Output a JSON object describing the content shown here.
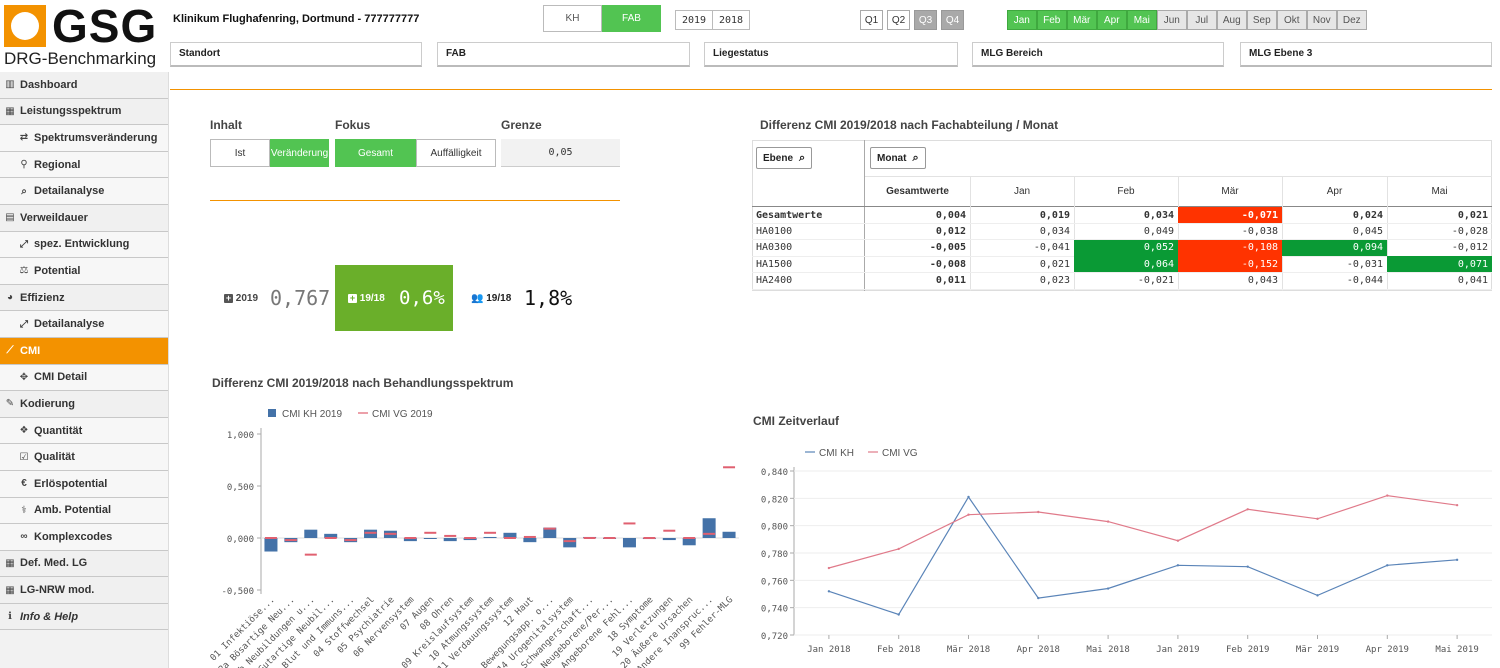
{
  "logo": {
    "brand": "GSG",
    "subtitle": "DRG-Benchmarking"
  },
  "header": {
    "clinic": "Klinikum Flughafenring, Dortmund - 777777777",
    "scope": [
      {
        "label": "KH",
        "active": false
      },
      {
        "label": "FAB",
        "active": true
      }
    ],
    "years": [
      "2019",
      "2018"
    ],
    "quarters": [
      {
        "label": "Q1",
        "available": true
      },
      {
        "label": "Q2",
        "available": true
      },
      {
        "label": "Q3",
        "available": false
      },
      {
        "label": "Q4",
        "available": false
      }
    ],
    "months": [
      {
        "label": "Jan",
        "active": true
      },
      {
        "label": "Feb",
        "active": true
      },
      {
        "label": "Mär",
        "active": true
      },
      {
        "label": "Apr",
        "active": true
      },
      {
        "label": "Mai",
        "active": true
      },
      {
        "label": "Jun",
        "active": false
      },
      {
        "label": "Jul",
        "active": false
      },
      {
        "label": "Aug",
        "active": false
      },
      {
        "label": "Sep",
        "active": false
      },
      {
        "label": "Okt",
        "active": false
      },
      {
        "label": "Nov",
        "active": false
      },
      {
        "label": "Dez",
        "active": false
      }
    ],
    "filters": [
      "Standort",
      "FAB",
      "Liegestatus",
      "MLG Bereich",
      "MLG Ebene 3"
    ]
  },
  "sidebar": {
    "items": [
      {
        "label": "Dashboard",
        "icon": "bar-chart-icon",
        "glyph": "▥",
        "level": 1
      },
      {
        "label": "Leistungsspektrum",
        "icon": "table-icon",
        "glyph": "▦",
        "level": 1
      },
      {
        "label": "Spektrumsveränderung",
        "icon": "exchange-icon",
        "glyph": "⇄",
        "level": 2
      },
      {
        "label": "Regional",
        "icon": "map-marker-icon",
        "glyph": "⚲",
        "level": 2
      },
      {
        "label": "Detailanalyse",
        "icon": "search-icon",
        "glyph": "⌕",
        "level": 2
      },
      {
        "label": "Verweildauer",
        "icon": "calendar-icon",
        "glyph": "▤",
        "level": 1
      },
      {
        "label": "spez. Entwicklung",
        "icon": "expand-icon",
        "glyph": "⤢",
        "level": 2
      },
      {
        "label": "Potential",
        "icon": "balance-icon",
        "glyph": "⚖",
        "level": 2
      },
      {
        "label": "Effizienz",
        "icon": "pie-chart-icon",
        "glyph": "◕",
        "level": 1
      },
      {
        "label": "Detailanalyse",
        "icon": "expand-icon",
        "glyph": "⤢",
        "level": 2
      },
      {
        "label": "CMI",
        "icon": "line-chart-icon",
        "glyph": "⟋",
        "level": 1,
        "active": true
      },
      {
        "label": "CMI Detail",
        "icon": "move-icon",
        "glyph": "✥",
        "level": 2
      },
      {
        "label": "Kodierung",
        "icon": "pencil-icon",
        "glyph": "✎",
        "level": 1
      },
      {
        "label": "Quantität",
        "icon": "cubes-icon",
        "glyph": "❖",
        "level": 2
      },
      {
        "label": "Qualität",
        "icon": "check-square-icon",
        "glyph": "☑",
        "level": 2
      },
      {
        "label": "Erlöspotential",
        "icon": "euro-icon",
        "glyph": "€",
        "level": 2
      },
      {
        "label": "Amb. Potential",
        "icon": "user-md-icon",
        "glyph": "⚕",
        "level": 2
      },
      {
        "label": "Komplexcodes",
        "icon": "link-icon",
        "glyph": "∞",
        "level": 2
      },
      {
        "label": "Def. Med. LG",
        "icon": "table-icon",
        "glyph": "▦",
        "level": 1
      },
      {
        "label": "LG-NRW mod.",
        "icon": "table-icon",
        "glyph": "▦",
        "level": 1
      },
      {
        "label": "Info & Help",
        "icon": "info-icon",
        "glyph": "ℹ",
        "level": 1,
        "italic": true
      }
    ]
  },
  "controls": {
    "inhalt": {
      "label": "Inhalt",
      "options": [
        {
          "label": "Ist",
          "active": false
        },
        {
          "label": "Veränderung",
          "active": true
        }
      ]
    },
    "fokus": {
      "label": "Fokus",
      "options": [
        {
          "label": "Gesamt",
          "active": true
        },
        {
          "label": "Auffälligkeit",
          "active": false
        }
      ]
    },
    "grenze": {
      "label": "Grenze",
      "value": "0,05"
    }
  },
  "kpis": {
    "cmi_2019": {
      "label": "2019",
      "value": "0,767",
      "icon": "plus-square-icon"
    },
    "change": {
      "label": "19/18",
      "value": "0,6%",
      "icon": "plus-square-icon"
    },
    "cases": {
      "label": "19/18",
      "value": "1,8%",
      "icon": "users-icon"
    }
  },
  "matrix": {
    "title": "Differenz CMI 2019/2018 nach Fachabteilung / Monat",
    "dim1": "Ebene",
    "dim2": "Monat",
    "columns": [
      "Gesamtwerte",
      "Jan",
      "Feb",
      "Mär",
      "Apr",
      "Mai"
    ],
    "rows": [
      {
        "label": "Gesamtwerte",
        "values": [
          "0,004",
          "0,019",
          "0,034",
          "-0,071",
          "0,024",
          "0,021"
        ],
        "colors": [
          "",
          "",
          "",
          "#ff3300",
          "",
          ""
        ],
        "bold": true
      },
      {
        "label": "HA0100",
        "values": [
          "0,012",
          "0,034",
          "0,049",
          "-0,038",
          "0,045",
          "-0,028"
        ],
        "colors": [
          "",
          "",
          "",
          "",
          "",
          ""
        ],
        "bold": false
      },
      {
        "label": "HA0300",
        "values": [
          "-0,005",
          "-0,041",
          "0,052",
          "-0,108",
          "0,094",
          "-0,012"
        ],
        "colors": [
          "",
          "",
          "#0a9a35",
          "#ff3300",
          "#0a9a35",
          ""
        ],
        "bold": false
      },
      {
        "label": "HA1500",
        "values": [
          "-0,008",
          "0,021",
          "0,064",
          "-0,152",
          "-0,031",
          "0,071"
        ],
        "colors": [
          "",
          "",
          "#0a9a35",
          "#ff3300",
          "",
          "#0a9a35"
        ],
        "bold": false
      },
      {
        "label": "HA2400",
        "values": [
          "0,011",
          "0,023",
          "-0,021",
          "0,043",
          "-0,044",
          "0,041"
        ],
        "colors": [
          "",
          "",
          "",
          "",
          "",
          ""
        ],
        "bold": false
      }
    ]
  },
  "chart_data": [
    {
      "type": "bar",
      "title": "Differenz CMI 2019/2018 nach Behandlungsspektrum",
      "ylim": [
        -0.5,
        1.0
      ],
      "yticks": [
        "1,000",
        "0,500",
        "0,000",
        "-0,500"
      ],
      "legend": "top-left",
      "series_names": [
        "CMI KH 2019",
        "CMI VG 2019"
      ],
      "colors": {
        "bar": "#4472a8",
        "marker": "#e06070"
      },
      "categories": [
        "01 Infektiöse...",
        "02a Bösartige Neu...",
        "02b Neubildungen u...",
        "02c Gutartige Neubil...",
        "03 Blut und Immuns...",
        "04 Stoffwechsel",
        "05 Psychiatrie",
        "06 Nervensystem",
        "07 Augen",
        "08 Ohren",
        "09 Kreislaufsystem",
        "10 Atmungssystem",
        "11 Verdauungssystem",
        "12 Haut",
        "13 Bewegungsapp. o...",
        "14 Urogenitalsystem",
        "15 Schwangerschaft...",
        "16 Neugeborene/Per...",
        "17 Angeborene Fehl...",
        "18 Symptome",
        "19 Verletzungen",
        "20 Äußere Ursachen",
        "21 Andere Inanspruc...",
        "99 Fehler-MLG"
      ],
      "bars": [
        -0.13,
        -0.04,
        0.08,
        0.04,
        -0.04,
        0.08,
        0.07,
        -0.03,
        0.0,
        -0.03,
        -0.02,
        0.01,
        0.05,
        -0.04,
        0.1,
        -0.09,
        0.01,
        0.0,
        -0.09,
        -0.01,
        -0.02,
        -0.07,
        0.19,
        0.06
      ],
      "markers": [
        0.0,
        -0.02,
        -0.16,
        0.0,
        -0.02,
        0.05,
        0.04,
        0.0,
        0.05,
        0.02,
        0.0,
        0.05,
        0.0,
        0.01,
        0.09,
        -0.03,
        0.0,
        0.0,
        0.14,
        0.0,
        0.07,
        0.0,
        0.04,
        0.68
      ]
    },
    {
      "type": "line",
      "title": "CMI Zeitverlauf",
      "ylim": [
        0.72,
        0.84
      ],
      "yticks": [
        "0,840",
        "0,820",
        "0,800",
        "0,780",
        "0,760",
        "0,740",
        "0,720"
      ],
      "legend": "top-left",
      "x": [
        "Jan 2018",
        "Feb 2018",
        "Mär 2018",
        "Apr 2018",
        "Mai 2018",
        "Jan 2019",
        "Feb 2019",
        "Mär 2019",
        "Apr 2019",
        "Mai 2019"
      ],
      "series": [
        {
          "name": "CMI KH",
          "color": "#5a84b8",
          "values": [
            0.752,
            0.735,
            0.821,
            0.747,
            0.754,
            0.771,
            0.77,
            0.749,
            0.771,
            0.775
          ]
        },
        {
          "name": "CMI VG",
          "color": "#e07a8a",
          "values": [
            0.769,
            0.783,
            0.808,
            0.81,
            0.803,
            0.789,
            0.812,
            0.805,
            0.822,
            0.815
          ]
        }
      ]
    }
  ]
}
